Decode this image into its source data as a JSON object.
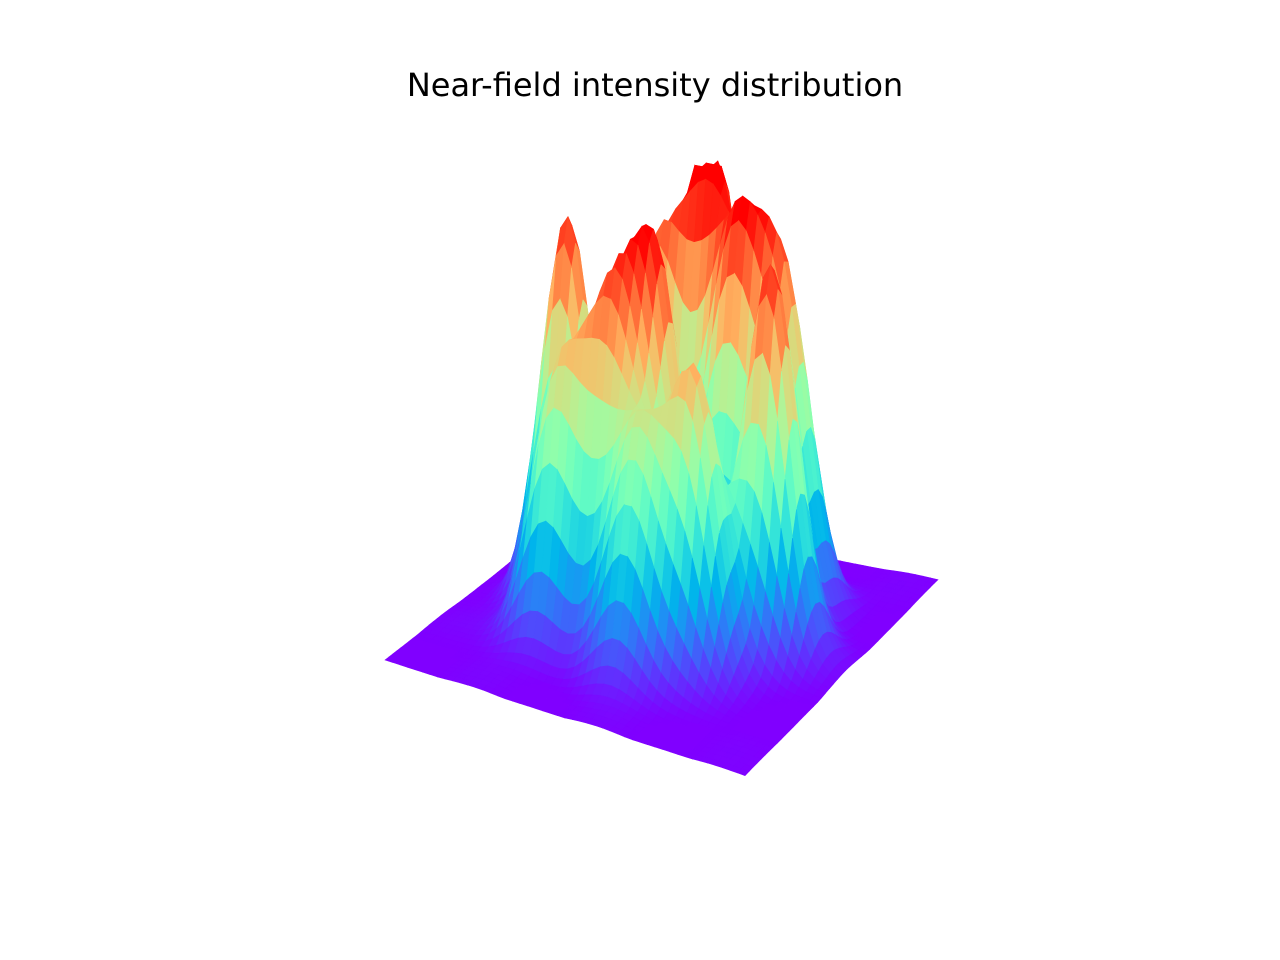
{
  "chart_data": {
    "type": "surface3d",
    "title": "Near-field intensity distribution",
    "colormap": "rainbow",
    "axes_visible": false,
    "grid": false,
    "legend": "none",
    "view": "perspective, axes hidden",
    "x_range": [
      -1,
      1
    ],
    "y_range": [
      -1,
      1
    ],
    "z_range": [
      0,
      1
    ],
    "base_level": 0.0,
    "ring_base_width": 0.13,
    "peaks": [
      {
        "x": -0.55,
        "y": 0.05,
        "z": 0.95
      },
      {
        "x": -0.25,
        "y": 0.4,
        "z": 0.78
      },
      {
        "x": 0.0,
        "y": 0.55,
        "z": 1.0
      },
      {
        "x": 0.22,
        "y": 0.35,
        "z": 0.82
      },
      {
        "x": 0.45,
        "y": 0.45,
        "z": 0.75
      },
      {
        "x": 0.58,
        "y": 0.05,
        "z": 0.98
      },
      {
        "x": 0.35,
        "y": -0.3,
        "z": 0.72
      },
      {
        "x": 0.0,
        "y": -0.05,
        "z": 0.88
      },
      {
        "x": -0.15,
        "y": -0.25,
        "z": 0.7
      },
      {
        "x": -0.4,
        "y": -0.35,
        "z": 0.62
      },
      {
        "x": 0.1,
        "y": -0.45,
        "z": 0.55
      }
    ]
  }
}
